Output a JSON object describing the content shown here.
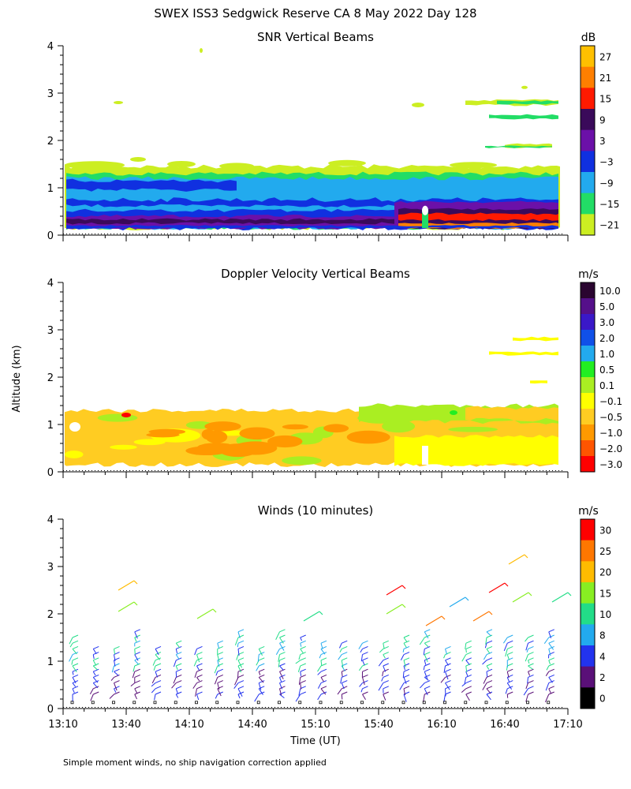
{
  "title": "SWEX ISS3 Sedgwick Reserve CA   8 May 2022 Day 128",
  "footnote": "Simple moment winds, no ship navigation correction applied",
  "chart_data": [
    {
      "type": "heatmap",
      "title": "SNR Vertical Beams",
      "ylim": [
        0,
        4
      ],
      "xlim": [
        "13:10",
        "17:10"
      ],
      "yticks": [
        "0",
        "1",
        "2",
        "3",
        "4"
      ],
      "colorbar": {
        "unit": "dB",
        "labels": [
          "27",
          "21",
          "15",
          "9",
          "3",
          "−3",
          "−9",
          "−15",
          "−21"
        ],
        "colors": [
          "#ffc000",
          "#ff7f00",
          "#ff1a00",
          "#3a0a5a",
          "#6b10a8",
          "#1030e0",
          "#22aaee",
          "#22dd66",
          "#ccee22"
        ]
      }
    },
    {
      "type": "heatmap",
      "title": "Doppler Velocity Vertical Beams",
      "ylim": [
        0,
        4
      ],
      "xlim": [
        "13:10",
        "17:10"
      ],
      "yticks": [
        "0",
        "1",
        "2",
        "3",
        "4"
      ],
      "colorbar": {
        "unit": "m/s",
        "labels": [
          "10.0",
          "5.0",
          "3.0",
          "2.0",
          "1.0",
          "0.5",
          "0.1",
          "−0.1",
          "−0.5",
          "−1.0",
          "−2.0",
          "−3.0"
        ],
        "colors": [
          "#2a0530",
          "#55108a",
          "#3a18c8",
          "#1050e8",
          "#22aaee",
          "#22ee22",
          "#aaee22",
          "#ffff00",
          "#ffcc22",
          "#ff9900",
          "#ff5500",
          "#ff0000"
        ]
      }
    },
    {
      "type": "scatter",
      "title": "Winds (10 minutes)",
      "ylim": [
        0,
        4
      ],
      "xlim": [
        "13:10",
        "17:10"
      ],
      "yticks": [
        "0",
        "1",
        "2",
        "3",
        "4"
      ],
      "xticks": [
        "13:10",
        "13:40",
        "14:10",
        "14:40",
        "15:10",
        "15:40",
        "16:10",
        "16:40",
        "17:10"
      ],
      "xlabel": "Time (UT)",
      "ylabel": "Altitude (km)",
      "colorbar": {
        "unit": "m/s",
        "labels": [
          "30",
          "25",
          "20",
          "15",
          "10",
          "8",
          "4",
          "2",
          "0"
        ],
        "colors": [
          "#ff0000",
          "#ff7700",
          "#ffbb00",
          "#88ee22",
          "#22dd88",
          "#22aaee",
          "#2233ee",
          "#5a1078",
          "#000000"
        ]
      }
    }
  ]
}
